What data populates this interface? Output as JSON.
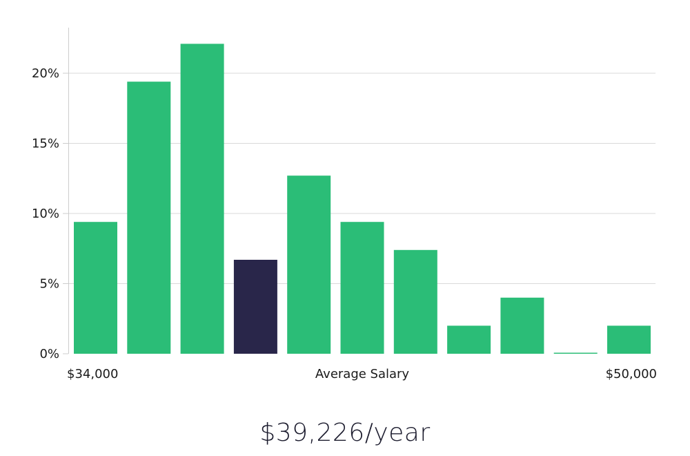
{
  "chart_data": {
    "type": "bar",
    "title": "",
    "xlabel": "Average Salary",
    "ylabel": "",
    "x_range_labels": {
      "min": "$34,000",
      "max": "$50,000"
    },
    "yticks": [
      0,
      5,
      10,
      15,
      20
    ],
    "ytick_labels": [
      "0%",
      "5%",
      "10%",
      "15%",
      "20%"
    ],
    "ylim": [
      0,
      23.2
    ],
    "grid": true,
    "values": [
      9.4,
      19.4,
      22.1,
      6.7,
      12.7,
      9.4,
      7.4,
      2.0,
      4.0,
      0.05,
      2.0
    ],
    "highlight_index": 3,
    "colors": {
      "bar": "#2bbd77",
      "highlight": "#29264a",
      "grid": "#d9d9d9",
      "axis": "#cccccc"
    }
  },
  "summary": {
    "salary_text": "$39,226/year"
  }
}
